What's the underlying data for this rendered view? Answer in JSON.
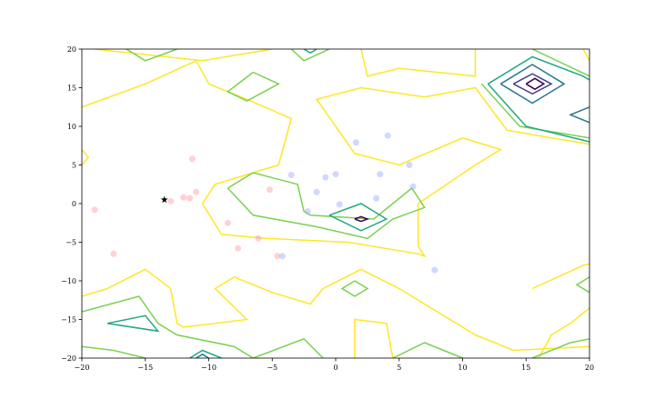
{
  "chart_data": {
    "type": "scatter",
    "subtype": "contour-with-scatter",
    "title": "",
    "xlabel": "",
    "ylabel": "",
    "xlim": [
      -20,
      20
    ],
    "ylim": [
      -20,
      20
    ],
    "xticks": [
      -20,
      -15,
      -10,
      -5,
      0,
      5,
      10,
      15,
      20
    ],
    "yticks": [
      -20,
      -15,
      -10,
      -5,
      0,
      5,
      10,
      15,
      20
    ],
    "grid": false,
    "colormap": "viridis",
    "contour_levels": [
      {
        "level": 1,
        "color": "#fde725",
        "paths": [
          [
            [
              -20,
              12.5
            ],
            [
              -15,
              15.5
            ],
            [
              -11,
              18.5
            ],
            [
              -10,
              15.5
            ],
            [
              -7,
              13.5
            ],
            [
              -3.5,
              11
            ],
            [
              -4.5,
              5
            ],
            [
              -9.5,
              2.5
            ],
            [
              -10.5,
              0
            ],
            [
              -9,
              -4
            ],
            [
              -5.5,
              -4.5
            ],
            [
              1,
              -5
            ],
            [
              6.5,
              -6.5
            ],
            [
              7,
              -6.8
            ],
            [
              6.5,
              -5.5
            ],
            [
              6.5,
              0
            ],
            [
              11,
              5
            ],
            [
              13,
              7
            ],
            [
              10,
              8.5
            ],
            [
              5,
              5
            ],
            [
              1.5,
              6.5
            ],
            [
              -1.5,
              13.5
            ],
            [
              2,
              15
            ],
            [
              7,
              13.8
            ],
            [
              11,
              15
            ],
            [
              13.5,
              9.5
            ],
            [
              17,
              8.5
            ],
            [
              20,
              7.7
            ]
          ],
          [
            [
              -20,
              7
            ],
            [
              -19.5,
              6
            ],
            [
              -20,
              5
            ]
          ],
          [
            [
              -19,
              20
            ],
            [
              -10.5,
              18.5
            ],
            [
              -5,
              20
            ]
          ],
          [
            [
              2,
              20
            ],
            [
              2.5,
              16.5
            ],
            [
              5,
              17.5
            ],
            [
              11,
              16.5
            ],
            [
              11,
              20
            ]
          ],
          [
            [
              19.5,
              20
            ],
            [
              20,
              18.5
            ]
          ],
          [
            [
              -20,
              -12
            ],
            [
              -18,
              -11
            ],
            [
              -15,
              -8.5
            ],
            [
              -13,
              -11
            ],
            [
              -12.5,
              -15.5
            ],
            [
              -12,
              -16
            ],
            [
              -7,
              -15
            ],
            [
              -9.5,
              -11
            ],
            [
              -8,
              -9.5
            ],
            [
              -5,
              -11.5
            ],
            [
              -2,
              -13
            ],
            [
              -1,
              -11
            ],
            [
              2,
              -8.5
            ],
            [
              5,
              -11
            ],
            [
              8,
              -14
            ],
            [
              11,
              -17
            ],
            [
              14,
              -19
            ],
            [
              20,
              -18.5
            ]
          ],
          [
            [
              1.5,
              -20
            ],
            [
              1.5,
              -15
            ],
            [
              4,
              -15.5
            ],
            [
              4.5,
              -20
            ]
          ],
          [
            [
              15.5,
              -11
            ],
            [
              19.5,
              -8
            ],
            [
              20,
              -7.8
            ]
          ],
          [
            [
              20,
              -13.5
            ],
            [
              18.5,
              -15.5
            ],
            [
              17,
              -17
            ],
            [
              16,
              -20
            ]
          ]
        ]
      },
      {
        "level": 2,
        "color": "#7ad151",
        "paths": [
          [
            [
              -8.5,
              2
            ],
            [
              -6.5,
              4
            ],
            [
              -3,
              2.5
            ],
            [
              -2.5,
              -1
            ],
            [
              -2,
              -1.5
            ],
            [
              3,
              -2
            ],
            [
              6,
              2
            ],
            [
              7,
              -0.5
            ],
            [
              4.5,
              -2
            ],
            [
              2.5,
              -4.5
            ],
            [
              -1.5,
              -3
            ],
            [
              -6.5,
              -1.5
            ],
            [
              -8.5,
              2
            ]
          ],
          [
            [
              -6.5,
              17
            ],
            [
              -8.5,
              14.5
            ],
            [
              -7,
              13.3
            ],
            [
              -4.5,
              15.5
            ],
            [
              -6.5,
              17
            ]
          ],
          [
            [
              -16.5,
              20
            ],
            [
              -15,
              18.5
            ],
            [
              -12.5,
              20
            ]
          ],
          [
            [
              -3.5,
              20
            ],
            [
              -2.5,
              18.5
            ],
            [
              -0.5,
              20
            ]
          ],
          [
            [
              11.5,
              15.5
            ],
            [
              14.5,
              10
            ],
            [
              20,
              8.5
            ]
          ],
          [
            [
              15.5,
              20
            ],
            [
              20,
              16.5
            ]
          ],
          [
            [
              1.5,
              -10
            ],
            [
              2.5,
              -11
            ],
            [
              1.5,
              -12
            ],
            [
              0.5,
              -11
            ],
            [
              1.5,
              -10
            ]
          ],
          [
            [
              -20,
              -14
            ],
            [
              -15.5,
              -12
            ],
            [
              -14,
              -15.5
            ],
            [
              -12.5,
              -17
            ],
            [
              -8,
              -18.5
            ],
            [
              -6.5,
              -20
            ]
          ],
          [
            [
              -20,
              -18.5
            ],
            [
              -17.5,
              -19
            ],
            [
              -15,
              -20
            ]
          ],
          [
            [
              -1,
              -20
            ],
            [
              -2.5,
              -17.5
            ],
            [
              -6.5,
              -20
            ]
          ],
          [
            [
              4.5,
              -20
            ],
            [
              7,
              -18
            ],
            [
              8.5,
              -19
            ],
            [
              10,
              -20
            ]
          ],
          [
            [
              15.5,
              -20
            ],
            [
              18.5,
              -18
            ],
            [
              20,
              -17.5
            ]
          ],
          [
            [
              20,
              -9.5
            ],
            [
              19,
              -10.5
            ],
            [
              20,
              -11.5
            ]
          ]
        ]
      },
      {
        "level": 3,
        "color": "#22a884",
        "paths": [
          [
            [
              -0.5,
              -1.5
            ],
            [
              2,
              0
            ],
            [
              4,
              -2
            ],
            [
              2,
              -3.5
            ],
            [
              -0.5,
              -1.5
            ]
          ],
          [
            [
              -18,
              -15.5
            ],
            [
              -15,
              -14.5
            ],
            [
              -14,
              -16.5
            ],
            [
              -18,
              -15.5
            ]
          ],
          [
            [
              -11.5,
              -20
            ],
            [
              -10.5,
              -19
            ],
            [
              -9,
              -20
            ]
          ],
          [
            [
              12,
              15.5
            ],
            [
              15.5,
              19
            ],
            [
              19.5,
              16.5
            ],
            [
              20,
              16
            ]
          ],
          [
            [
              20,
              8
            ],
            [
              15,
              10
            ],
            [
              12,
              15.5
            ]
          ],
          [
            [
              -2.5,
              20
            ],
            [
              -2,
              19.5
            ],
            [
              -1.5,
              20
            ]
          ]
        ]
      },
      {
        "level": 4,
        "color": "#2a788e",
        "paths": [
          [
            [
              13,
              15.5
            ],
            [
              15.5,
              18
            ],
            [
              18,
              15.5
            ],
            [
              15.5,
              13
            ],
            [
              13,
              15.5
            ]
          ],
          [
            [
              20,
              12.5
            ],
            [
              18.5,
              11.5
            ],
            [
              20,
              10.5
            ]
          ],
          [
            [
              -11,
              -20
            ],
            [
              -10.5,
              -19.5
            ],
            [
              -10,
              -20
            ]
          ]
        ]
      },
      {
        "level": 5,
        "color": "#414487",
        "paths": [
          [
            [
              14,
              15.5
            ],
            [
              15.5,
              16.8
            ],
            [
              17,
              15.5
            ],
            [
              15.5,
              14.2
            ],
            [
              14,
              15.5
            ]
          ]
        ]
      },
      {
        "level": 6,
        "color": "#440154",
        "paths": [
          [
            [
              15,
              15.5
            ],
            [
              15.7,
              16.2
            ],
            [
              16.4,
              15.5
            ],
            [
              15.7,
              14.8
            ],
            [
              15,
              15.5
            ]
          ],
          [
            [
              1.5,
              -2
            ],
            [
              2,
              -1.7
            ],
            [
              2.5,
              -2
            ],
            [
              2,
              -2.3
            ],
            [
              1.5,
              -2
            ]
          ]
        ]
      }
    ],
    "series": [
      {
        "color": "#ff9aa2",
        "marker": "circle",
        "points": [
          [
            -19,
            -0.8
          ],
          [
            -17.5,
            -6.5
          ],
          [
            -13,
            0.3
          ],
          [
            -12,
            0.8
          ],
          [
            -11.5,
            0.7
          ],
          [
            -11,
            1.5
          ],
          [
            -11.3,
            5.8
          ],
          [
            -8.5,
            -2.5
          ],
          [
            -7.7,
            -5.8
          ],
          [
            -6.1,
            -4.5
          ],
          [
            -5.2,
            1.8
          ],
          [
            -4.6,
            -6.8
          ]
        ]
      },
      {
        "color": "#9aa8ff",
        "marker": "circle",
        "points": [
          [
            -4.2,
            -6.8
          ],
          [
            -3.5,
            3.7
          ],
          [
            -2.2,
            -1
          ],
          [
            -1.5,
            1.5
          ],
          [
            -0.8,
            3.4
          ],
          [
            0,
            3.8
          ],
          [
            0.3,
            -0.1
          ],
          [
            1.6,
            7.9
          ],
          [
            3.2,
            0.7
          ],
          [
            3.5,
            3.8
          ],
          [
            4.1,
            8.8
          ],
          [
            5.8,
            5
          ],
          [
            6.1,
            2.2
          ],
          [
            7.8,
            -8.6
          ]
        ]
      },
      {
        "color": "#000000",
        "marker": "star",
        "points": [
          [
            -13.5,
            0.5
          ]
        ]
      }
    ]
  }
}
